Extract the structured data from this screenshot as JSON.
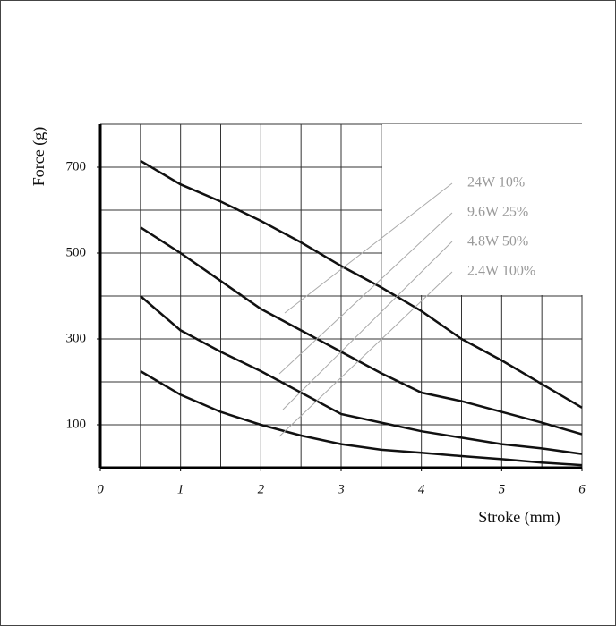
{
  "chart_data": {
    "type": "line",
    "x_label": "Stroke (mm)",
    "y_label": "Force (g)",
    "x": [
      0.5,
      1,
      1.5,
      2,
      2.5,
      3,
      3.5,
      4,
      4.5,
      5,
      5.5,
      6
    ],
    "series": [
      {
        "name": "24W 10%",
        "color": "#111111",
        "values": [
          715,
          660,
          620,
          575,
          525,
          470,
          420,
          365,
          300,
          250,
          195,
          140
        ]
      },
      {
        "name": "9.6W 25%",
        "color": "#111111",
        "values": [
          560,
          500,
          435,
          370,
          320,
          270,
          220,
          175,
          155,
          130,
          105,
          78
        ]
      },
      {
        "name": "4.8W 50%",
        "color": "#111111",
        "values": [
          400,
          320,
          270,
          225,
          175,
          125,
          105,
          85,
          70,
          55,
          45,
          32
        ]
      },
      {
        "name": "2.4W 100%",
        "color": "#111111",
        "values": [
          225,
          170,
          130,
          100,
          75,
          55,
          42,
          35,
          27,
          20,
          12,
          6
        ]
      }
    ],
    "xlim": [
      0,
      6
    ],
    "xticks": [
      0,
      1,
      2,
      3,
      4,
      5,
      6
    ],
    "ylim": [
      0,
      800
    ],
    "yticks": [
      100,
      300,
      500,
      700
    ],
    "grid": true
  }
}
